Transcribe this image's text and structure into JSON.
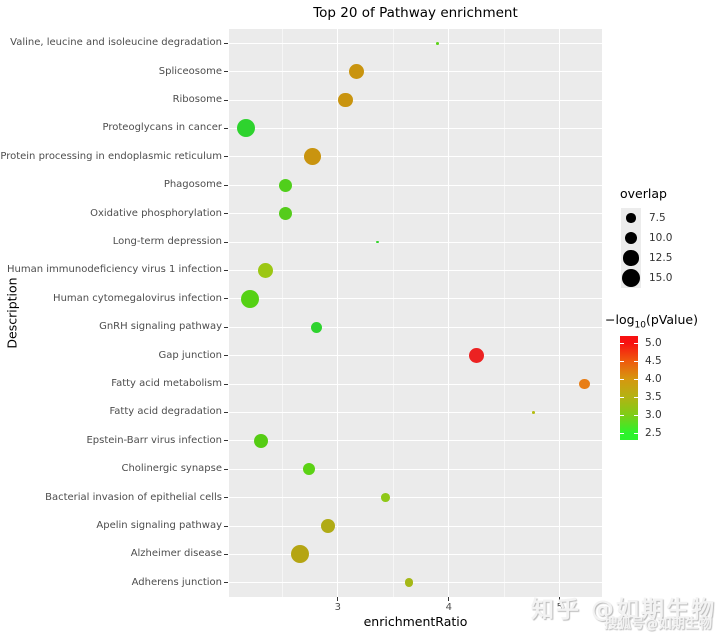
{
  "title": "Top 20 of Pathway enrichment",
  "axes": {
    "x_label": "enrichmentRatio",
    "y_label": "Description",
    "x_tick_labels": [
      "3",
      "4",
      "5"
    ]
  },
  "chart_data": {
    "type": "scatter",
    "title": "Top 20 of Pathway enrichment",
    "xlabel": "enrichmentRatio",
    "ylabel": "Description",
    "x_range": [
      2.02,
      5.38
    ],
    "x_major_ticks": [
      3,
      4,
      5
    ],
    "x_minor_gridlines": [
      2.5,
      3.5,
      4.5
    ],
    "grid": true,
    "panel_background": "#ebebeb",
    "gridline_color": "#ffffff",
    "legend_position": "right",
    "points": [
      {
        "pathway": "Valine, leucine and isoleucine degradation",
        "enrichmentRatio": 3.9,
        "overlap": 2,
        "neg_log10_pValue": 2.8,
        "color": "#5fd41c"
      },
      {
        "pathway": "Spliceosome",
        "enrichmentRatio": 3.17,
        "overlap": 13,
        "neg_log10_pValue": 3.9,
        "color": "#c9940f"
      },
      {
        "pathway": "Ribosome",
        "enrichmentRatio": 3.07,
        "overlap": 12,
        "neg_log10_pValue": 3.9,
        "color": "#c9940f"
      },
      {
        "pathway": "Proteoglycans in cancer",
        "enrichmentRatio": 2.17,
        "overlap": 15,
        "neg_log10_pValue": 2.5,
        "color": "#2ed32e"
      },
      {
        "pathway": "Protein processing in endoplasmic reticulum",
        "enrichmentRatio": 2.77,
        "overlap": 14,
        "neg_log10_pValue": 3.9,
        "color": "#c9940f"
      },
      {
        "pathway": "Phagosome",
        "enrichmentRatio": 2.53,
        "overlap": 11,
        "neg_log10_pValue": 2.75,
        "color": "#50cf1b"
      },
      {
        "pathway": "Oxidative phosphorylation",
        "enrichmentRatio": 2.53,
        "overlap": 11,
        "neg_log10_pValue": 2.75,
        "color": "#55cc1b"
      },
      {
        "pathway": "Long-term depression",
        "enrichmentRatio": 3.36,
        "overlap": 2,
        "neg_log10_pValue": 2.6,
        "color": "#33d62a"
      },
      {
        "pathway": "Human immunodeficiency virus 1 infection",
        "enrichmentRatio": 2.35,
        "overlap": 13,
        "neg_log10_pValue": 3.2,
        "color": "#9cc714"
      },
      {
        "pathway": "Human cytomegalovirus infection",
        "enrichmentRatio": 2.21,
        "overlap": 15,
        "neg_log10_pValue": 2.7,
        "color": "#55d114"
      },
      {
        "pathway": "GnRH signaling pathway",
        "enrichmentRatio": 2.81,
        "overlap": 9,
        "neg_log10_pValue": 2.5,
        "color": "#2ed32e"
      },
      {
        "pathway": "Gap junction",
        "enrichmentRatio": 4.25,
        "overlap": 13,
        "neg_log10_pValue": 5.0,
        "color": "#ec2222"
      },
      {
        "pathway": "Fatty acid metabolism",
        "enrichmentRatio": 5.22,
        "overlap": 9,
        "neg_log10_pValue": 4.4,
        "color": "#e87d15"
      },
      {
        "pathway": "Fatty acid degradation",
        "enrichmentRatio": 4.76,
        "overlap": 2,
        "neg_log10_pValue": 3.4,
        "color": "#b5bd16"
      },
      {
        "pathway": "Epstein-Barr virus infection",
        "enrichmentRatio": 2.31,
        "overlap": 12,
        "neg_log10_pValue": 2.75,
        "color": "#55cc13"
      },
      {
        "pathway": "Cholinergic synapse",
        "enrichmentRatio": 2.74,
        "overlap": 10,
        "neg_log10_pValue": 2.7,
        "color": "#5bd214"
      },
      {
        "pathway": "Bacterial invasion of epithelial cells",
        "enrichmentRatio": 3.43,
        "overlap": 7,
        "neg_log10_pValue": 3.1,
        "color": "#8fc818"
      },
      {
        "pathway": "Apelin signaling pathway",
        "enrichmentRatio": 2.91,
        "overlap": 12,
        "neg_log10_pValue": 3.45,
        "color": "#b0ab15"
      },
      {
        "pathway": "Alzheimer disease",
        "enrichmentRatio": 2.66,
        "overlap": 15,
        "neg_log10_pValue": 3.5,
        "color": "#b5a513"
      },
      {
        "pathway": "Adherens junction",
        "enrichmentRatio": 3.64,
        "overlap": 7,
        "neg_log10_pValue": 3.35,
        "color": "#a5b817"
      }
    ]
  },
  "legend": {
    "overlap": {
      "title": "overlap",
      "sizes": [
        7.5,
        10.0,
        12.5,
        15.0
      ],
      "labels": [
        "7.5",
        "10.0",
        "12.5",
        "15.0"
      ],
      "dot_color": "#000000"
    },
    "colorbar": {
      "title_prefix": "−log",
      "title_sub": "10",
      "title_suffix": "(pValue)",
      "tick_values": [
        5.0,
        4.5,
        4.0,
        3.5,
        3.0,
        2.5
      ],
      "tick_labels": [
        "5.0",
        "4.5",
        "4.0",
        "3.5",
        "3.0",
        "2.5"
      ],
      "stops": [
        {
          "value": 5.0,
          "color": "#f71111"
        },
        {
          "value": 4.5,
          "color": "#ef5a0d"
        },
        {
          "value": 4.0,
          "color": "#d6970f"
        },
        {
          "value": 3.5,
          "color": "#b3b313"
        },
        {
          "value": 3.0,
          "color": "#7ecd17"
        },
        {
          "value": 2.5,
          "color": "#2cf32c"
        }
      ]
    }
  },
  "watermark": {
    "line1": "知乎 @如期生物",
    "line2": "搜狐号@如期生物"
  }
}
